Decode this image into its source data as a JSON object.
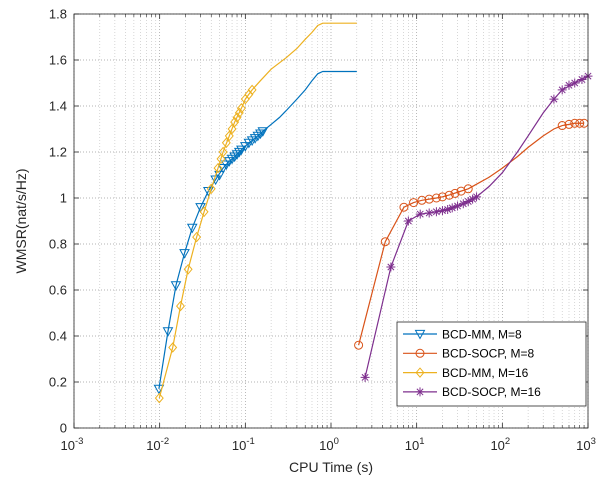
{
  "chart_data": {
    "type": "line",
    "xlabel": "CPU Time (s)",
    "ylabel": "WMSR(nat/s/Hz)",
    "xscale": "log",
    "xlim": [
      0.001,
      1000
    ],
    "ylim": [
      0,
      1.8
    ],
    "grid": "on, major and minor",
    "legend_position": "bottom-right",
    "x_ticks": [
      {
        "value": 0.001,
        "base": "10",
        "exp": "-3"
      },
      {
        "value": 0.01,
        "base": "10",
        "exp": "-2"
      },
      {
        "value": 0.1,
        "base": "10",
        "exp": "-1"
      },
      {
        "value": 1,
        "base": "10",
        "exp": "0"
      },
      {
        "value": 10,
        "base": "10",
        "exp": "1"
      },
      {
        "value": 100,
        "base": "10",
        "exp": "2"
      },
      {
        "value": 1000,
        "base": "10",
        "exp": "3"
      }
    ],
    "y_ticks": [
      {
        "value": 0,
        "label": "0"
      },
      {
        "value": 0.2,
        "label": "0.2"
      },
      {
        "value": 0.4,
        "label": "0.4"
      },
      {
        "value": 0.6,
        "label": "0.6"
      },
      {
        "value": 0.8,
        "label": "0.8"
      },
      {
        "value": 1.0,
        "label": "1"
      },
      {
        "value": 1.2,
        "label": "1.2"
      },
      {
        "value": 1.4,
        "label": "1.4"
      },
      {
        "value": 1.6,
        "label": "1.6"
      },
      {
        "value": 1.8,
        "label": "1.8"
      }
    ],
    "series": [
      {
        "name": "BCD-MM, M=8",
        "color": "#0072BD",
        "marker": "triangle-down",
        "points": [
          [
            0.0098,
            0.17
          ],
          [
            0.0125,
            0.42
          ],
          [
            0.0155,
            0.62
          ],
          [
            0.0195,
            0.76
          ],
          [
            0.024,
            0.87
          ],
          [
            0.03,
            0.96
          ],
          [
            0.037,
            1.03
          ],
          [
            0.045,
            1.08
          ],
          [
            0.055,
            1.13
          ],
          [
            0.065,
            1.16
          ],
          [
            0.075,
            1.18
          ],
          [
            0.09,
            1.21
          ],
          [
            0.11,
            1.24
          ],
          [
            0.13,
            1.26
          ],
          [
            0.16,
            1.29
          ],
          [
            0.2,
            1.32
          ],
          [
            0.25,
            1.35
          ],
          [
            0.3,
            1.38
          ],
          [
            0.4,
            1.43
          ],
          [
            0.5,
            1.47
          ],
          [
            0.6,
            1.51
          ],
          [
            0.7,
            1.54
          ],
          [
            0.8,
            1.55
          ],
          [
            1.0,
            1.55
          ],
          [
            2.0,
            1.55
          ]
        ],
        "marker_points": [
          [
            0.0098,
            0.17
          ],
          [
            0.0125,
            0.42
          ],
          [
            0.0155,
            0.62
          ],
          [
            0.0195,
            0.76
          ],
          [
            0.024,
            0.87
          ],
          [
            0.03,
            0.96
          ],
          [
            0.037,
            1.03
          ],
          [
            0.045,
            1.08
          ],
          [
            0.05,
            1.1
          ],
          [
            0.055,
            1.13
          ],
          [
            0.06,
            1.145
          ],
          [
            0.065,
            1.16
          ],
          [
            0.07,
            1.17
          ],
          [
            0.075,
            1.18
          ],
          [
            0.08,
            1.19
          ],
          [
            0.085,
            1.2
          ],
          [
            0.09,
            1.21
          ],
          [
            0.1,
            1.225
          ],
          [
            0.11,
            1.24
          ],
          [
            0.12,
            1.25
          ],
          [
            0.13,
            1.26
          ],
          [
            0.14,
            1.27
          ],
          [
            0.15,
            1.28
          ],
          [
            0.16,
            1.29
          ]
        ]
      },
      {
        "name": "BCD-SOCP, M=8",
        "color": "#D95319",
        "marker": "circle",
        "points": [
          [
            2.1,
            0.36
          ],
          [
            4.3,
            0.81
          ],
          [
            7.1,
            0.96
          ],
          [
            9.2,
            0.98
          ],
          [
            11.5,
            0.99
          ],
          [
            14,
            0.995
          ],
          [
            17,
            1.0
          ],
          [
            20,
            1.005
          ],
          [
            25,
            1.015
          ],
          [
            30,
            1.025
          ],
          [
            40,
            1.04
          ],
          [
            50,
            1.06
          ],
          [
            70,
            1.09
          ],
          [
            100,
            1.13
          ],
          [
            150,
            1.18
          ],
          [
            200,
            1.22
          ],
          [
            300,
            1.27
          ],
          [
            400,
            1.3
          ],
          [
            500,
            1.315
          ],
          [
            600,
            1.32
          ],
          [
            700,
            1.325
          ],
          [
            800,
            1.325
          ],
          [
            900,
            1.325
          ]
        ],
        "marker_points": [
          [
            2.1,
            0.36
          ],
          [
            4.3,
            0.81
          ],
          [
            7.1,
            0.96
          ],
          [
            9.2,
            0.98
          ],
          [
            11.5,
            0.99
          ],
          [
            14,
            0.995
          ],
          [
            17,
            1.0
          ],
          [
            20,
            1.005
          ],
          [
            24,
            1.012
          ],
          [
            28,
            1.02
          ],
          [
            33,
            1.03
          ],
          [
            40,
            1.04
          ],
          [
            500,
            1.315
          ],
          [
            600,
            1.32
          ],
          [
            700,
            1.325
          ],
          [
            800,
            1.325
          ],
          [
            900,
            1.325
          ]
        ]
      },
      {
        "name": "BCD-MM, M=16",
        "color": "#EDB120",
        "marker": "diamond",
        "points": [
          [
            0.0099,
            0.13
          ],
          [
            0.0142,
            0.35
          ],
          [
            0.0175,
            0.53
          ],
          [
            0.0215,
            0.69
          ],
          [
            0.027,
            0.83
          ],
          [
            0.033,
            0.94
          ],
          [
            0.04,
            1.04
          ],
          [
            0.048,
            1.13
          ],
          [
            0.055,
            1.2
          ],
          [
            0.065,
            1.27
          ],
          [
            0.075,
            1.33
          ],
          [
            0.09,
            1.39
          ],
          [
            0.1,
            1.43
          ],
          [
            0.12,
            1.47
          ],
          [
            0.15,
            1.51
          ],
          [
            0.2,
            1.56
          ],
          [
            0.3,
            1.61
          ],
          [
            0.4,
            1.65
          ],
          [
            0.5,
            1.69
          ],
          [
            0.6,
            1.72
          ],
          [
            0.7,
            1.75
          ],
          [
            0.8,
            1.76
          ],
          [
            1.0,
            1.76
          ],
          [
            2.0,
            1.76
          ]
        ],
        "marker_points": [
          [
            0.0099,
            0.13
          ],
          [
            0.0142,
            0.35
          ],
          [
            0.0175,
            0.53
          ],
          [
            0.0215,
            0.69
          ],
          [
            0.027,
            0.83
          ],
          [
            0.033,
            0.94
          ],
          [
            0.04,
            1.04
          ],
          [
            0.048,
            1.13
          ],
          [
            0.052,
            1.17
          ],
          [
            0.055,
            1.2
          ],
          [
            0.06,
            1.24
          ],
          [
            0.065,
            1.27
          ],
          [
            0.07,
            1.3
          ],
          [
            0.075,
            1.33
          ],
          [
            0.08,
            1.35
          ],
          [
            0.085,
            1.37
          ],
          [
            0.09,
            1.39
          ],
          [
            0.1,
            1.43
          ],
          [
            0.11,
            1.45
          ],
          [
            0.12,
            1.47
          ]
        ]
      },
      {
        "name": "BCD-SOCP, M=16",
        "color": "#7E2F8E",
        "marker": "asterisk",
        "points": [
          [
            2.5,
            0.22
          ],
          [
            5,
            0.7
          ],
          [
            8,
            0.9
          ],
          [
            11,
            0.93
          ],
          [
            14,
            0.935
          ],
          [
            17,
            0.94
          ],
          [
            20,
            0.945
          ],
          [
            25,
            0.955
          ],
          [
            30,
            0.965
          ],
          [
            35,
            0.975
          ],
          [
            40,
            0.985
          ],
          [
            50,
            1.005
          ],
          [
            70,
            1.05
          ],
          [
            100,
            1.11
          ],
          [
            150,
            1.2
          ],
          [
            200,
            1.27
          ],
          [
            300,
            1.37
          ],
          [
            400,
            1.43
          ],
          [
            500,
            1.47
          ],
          [
            700,
            1.5
          ],
          [
            1000,
            1.53
          ]
        ],
        "marker_points": [
          [
            2.5,
            0.22
          ],
          [
            5,
            0.7
          ],
          [
            8,
            0.9
          ],
          [
            11,
            0.93
          ],
          [
            14,
            0.935
          ],
          [
            17,
            0.94
          ],
          [
            20,
            0.945
          ],
          [
            23,
            0.95
          ],
          [
            26,
            0.957
          ],
          [
            30,
            0.965
          ],
          [
            35,
            0.975
          ],
          [
            40,
            0.985
          ],
          [
            45,
            0.995
          ],
          [
            50,
            1.005
          ],
          [
            400,
            1.43
          ],
          [
            500,
            1.47
          ],
          [
            600,
            1.49
          ],
          [
            700,
            1.5
          ],
          [
            850,
            1.515
          ],
          [
            1000,
            1.53
          ]
        ]
      }
    ]
  }
}
